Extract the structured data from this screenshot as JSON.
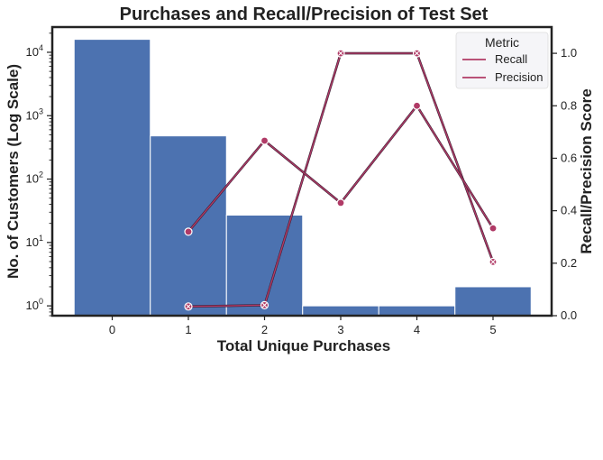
{
  "chart_data": {
    "type": "bar+line",
    "title": "Purchases and Recall/Precision of Test Set",
    "xlabel": "Total Unique Purchases",
    "ylabel_left": "No. of Customers (Log Scale)",
    "ylabel_right": "Recall/Precision Score",
    "categories": [
      "0",
      "1",
      "2",
      "3",
      "4",
      "5"
    ],
    "bars": {
      "values": [
        16000,
        480,
        27,
        1,
        1,
        2
      ],
      "color": "#4c72b0",
      "yscale": "log",
      "ylim": [
        0.7,
        25000
      ]
    },
    "y_right_ticks": [
      "0.0",
      "0.2",
      "0.4",
      "0.6",
      "0.8",
      "1.0"
    ],
    "y_right_lim": [
      0.0,
      1.1
    ],
    "legend": {
      "title": "Metric",
      "position": "top-right"
    },
    "series": [
      {
        "name": "Recall",
        "x": [
          1,
          2,
          3,
          4,
          5
        ],
        "values": [
          0.035,
          0.04,
          1.0,
          1.0,
          0.205
        ],
        "color": "#b03a66",
        "marker": "x"
      },
      {
        "name": "Precision",
        "x": [
          1,
          2,
          3,
          4,
          5
        ],
        "values": [
          0.32,
          0.667,
          0.43,
          0.8,
          0.333
        ],
        "color": "#b03a66",
        "marker": "o"
      }
    ],
    "grid": false
  }
}
